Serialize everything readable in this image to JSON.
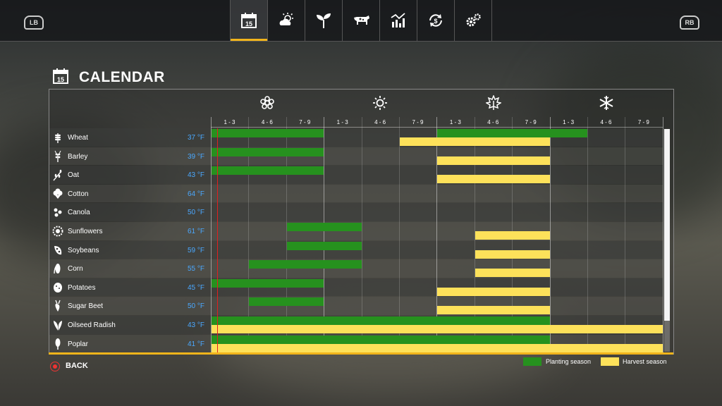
{
  "header": {
    "left_shoulder": "LB",
    "right_shoulder": "RB",
    "calendar_tab_day": "15",
    "tabs": [
      {
        "icon": "calendar-icon",
        "active": true
      },
      {
        "icon": "weather-icon",
        "active": false
      },
      {
        "icon": "sprout-icon",
        "active": false
      },
      {
        "icon": "cow-icon",
        "active": false
      },
      {
        "icon": "stats-chart-icon",
        "active": false
      },
      {
        "icon": "finance-cycle-icon",
        "active": false
      },
      {
        "icon": "settings-gears-icon",
        "active": false
      }
    ]
  },
  "page": {
    "title": "CALENDAR",
    "title_icon_day": "15"
  },
  "seasons": [
    {
      "icon": "spring-flower-icon"
    },
    {
      "icon": "summer-sun-icon"
    },
    {
      "icon": "autumn-leaf-icon"
    },
    {
      "icon": "winter-snowflake-icon"
    }
  ],
  "periods": [
    "1 - 3",
    "4 - 6",
    "7 - 9",
    "1 - 3",
    "4 - 6",
    "7 - 9",
    "1 - 3",
    "4 - 6",
    "7 - 9",
    "1 - 3",
    "4 - 6",
    "7 - 9"
  ],
  "crops": [
    {
      "name": "Wheat",
      "temp": "37 °F",
      "icon": "wheat-icon",
      "planting": [
        [
          0,
          3
        ],
        [
          6,
          10
        ]
      ],
      "harvest": [
        [
          5,
          9
        ]
      ]
    },
    {
      "name": "Barley",
      "temp": "39 °F",
      "icon": "barley-icon",
      "planting": [
        [
          0,
          3
        ]
      ],
      "harvest": [
        [
          6,
          9
        ]
      ]
    },
    {
      "name": "Oat",
      "temp": "43 °F",
      "icon": "oat-icon",
      "planting": [
        [
          0,
          3
        ]
      ],
      "harvest": [
        [
          6,
          9
        ]
      ]
    },
    {
      "name": "Cotton",
      "temp": "64 °F",
      "icon": "cotton-icon",
      "planting": [],
      "harvest": []
    },
    {
      "name": "Canola",
      "temp": "50 °F",
      "icon": "canola-icon",
      "planting": [],
      "harvest": []
    },
    {
      "name": "Sunflowers",
      "temp": "61 °F",
      "icon": "sunflower-icon",
      "planting": [
        [
          2,
          4
        ]
      ],
      "harvest": [
        [
          7,
          9
        ]
      ]
    },
    {
      "name": "Soybeans",
      "temp": "59 °F",
      "icon": "soybean-icon",
      "planting": [
        [
          2,
          4
        ]
      ],
      "harvest": [
        [
          7,
          9
        ]
      ]
    },
    {
      "name": "Corn",
      "temp": "55 °F",
      "icon": "corn-icon",
      "planting": [
        [
          1,
          4
        ]
      ],
      "harvest": [
        [
          7,
          9
        ]
      ]
    },
    {
      "name": "Potatoes",
      "temp": "45 °F",
      "icon": "potato-icon",
      "planting": [
        [
          0,
          3
        ]
      ],
      "harvest": [
        [
          6,
          9
        ]
      ]
    },
    {
      "name": "Sugar Beet",
      "temp": "50 °F",
      "icon": "sugar-beet-icon",
      "planting": [
        [
          1,
          3
        ]
      ],
      "harvest": [
        [
          6,
          9
        ]
      ]
    },
    {
      "name": "Oilseed Radish",
      "temp": "43 °F",
      "icon": "oilseed-radish-icon",
      "planting": [
        [
          0,
          9
        ]
      ],
      "harvest": [
        [
          0,
          12
        ]
      ]
    },
    {
      "name": "Poplar",
      "temp": "41 °F",
      "icon": "poplar-icon",
      "planting": [
        [
          0,
          9
        ]
      ],
      "harvest": [
        [
          0,
          12
        ]
      ]
    }
  ],
  "colors": {
    "planting": "#26911e",
    "harvest": "#fde15a",
    "accent": "#f1b41b",
    "temp": "#4aa8ff",
    "today_marker": "#e02020"
  },
  "legend": {
    "planting_label": "Planting season",
    "harvest_label": "Harvest season"
  },
  "footer": {
    "back_label": "BACK"
  }
}
